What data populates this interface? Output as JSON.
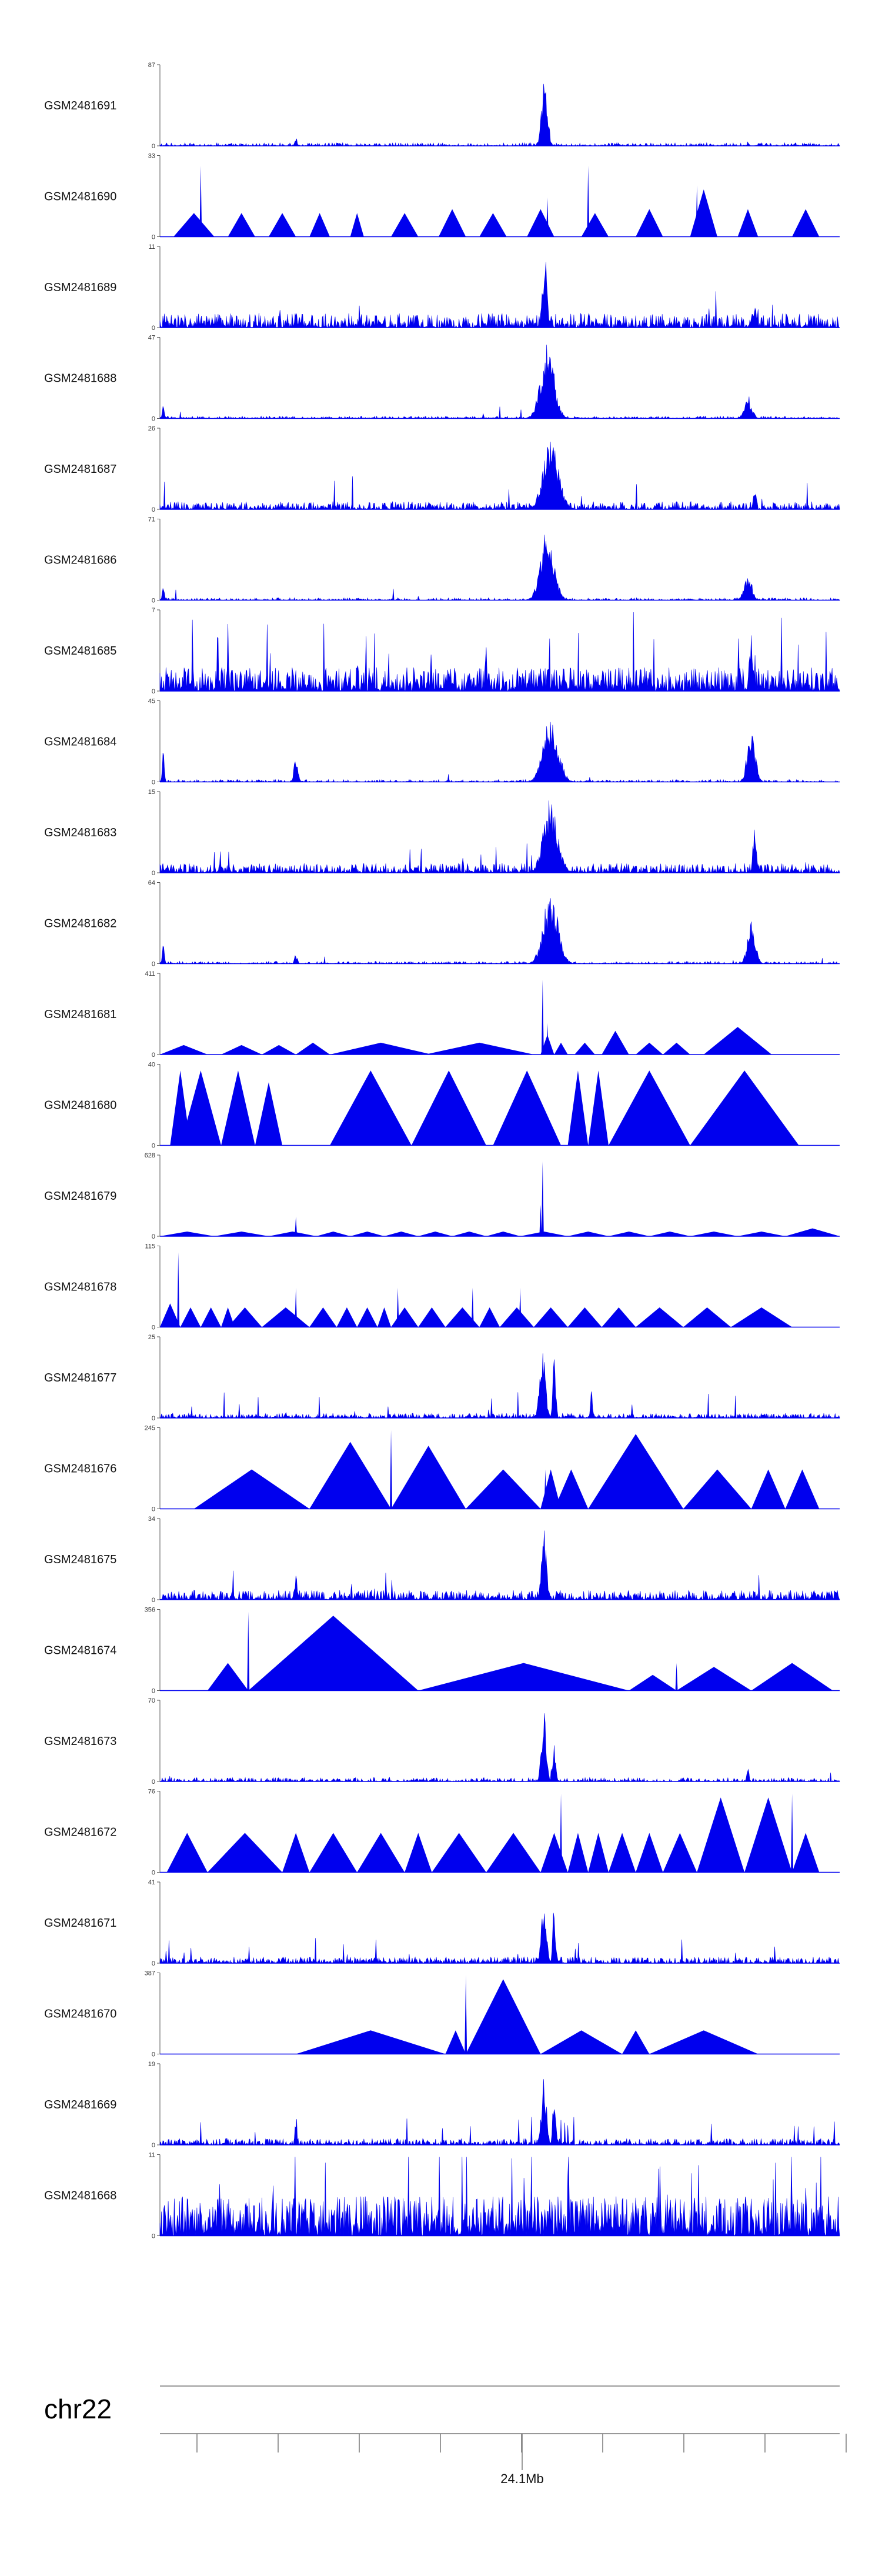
{
  "chart_data": {
    "type": "area",
    "title": "",
    "color": "#0000ee",
    "chromosome": "chr22",
    "position_label": "24.1Mb",
    "x_ticks_count": 9,
    "tracks": [
      {
        "name": "GSM2481691",
        "ymax": 87,
        "ymin": 0,
        "style": "sparse_peak",
        "baseline": 0.04,
        "peaks": [
          [
            0.2,
            0.12,
            0.22
          ],
          [
            0.566,
            0.9,
            0.6
          ],
          [
            0.865,
            0.08,
            0.1
          ]
        ]
      },
      {
        "name": "GSM2481690",
        "ymax": 33,
        "ymin": 0,
        "style": "triangles",
        "baseline": 0.0,
        "tri": [
          [
            0.02,
            0.08,
            0.3
          ],
          [
            0.1,
            0.14,
            0.3
          ],
          [
            0.16,
            0.2,
            0.3
          ],
          [
            0.22,
            0.25,
            0.3
          ],
          [
            0.28,
            0.3,
            0.3
          ],
          [
            0.34,
            0.38,
            0.3
          ],
          [
            0.41,
            0.45,
            0.35
          ],
          [
            0.47,
            0.51,
            0.3
          ],
          [
            0.54,
            0.58,
            0.35
          ],
          [
            0.62,
            0.66,
            0.3
          ],
          [
            0.7,
            0.74,
            0.35
          ],
          [
            0.78,
            0.82,
            0.6
          ],
          [
            0.85,
            0.88,
            0.35
          ],
          [
            0.93,
            0.97,
            0.35
          ]
        ],
        "spikes": [
          [
            0.06,
            0.9
          ],
          [
            0.63,
            0.9
          ],
          [
            0.79,
            0.65
          ],
          [
            0.57,
            0.5
          ]
        ]
      },
      {
        "name": "GSM2481689",
        "ymax": 11,
        "ymin": 0,
        "style": "noisy_peak",
        "baseline": 0.18,
        "peaks": [
          [
            0.566,
            0.95,
            0.5
          ],
          [
            0.875,
            0.4,
            0.3
          ],
          [
            0.2,
            0.3,
            0.2
          ]
        ]
      },
      {
        "name": "GSM2481688",
        "ymax": 47,
        "ymin": 0,
        "style": "sparse_peak",
        "baseline": 0.03,
        "peaks": [
          [
            0.57,
            0.95,
            1.4
          ],
          [
            0.865,
            0.3,
            0.8
          ],
          [
            0.005,
            0.2,
            0.2
          ]
        ]
      },
      {
        "name": "GSM2481687",
        "ymax": 26,
        "ymin": 0,
        "style": "noisy_peak",
        "baseline": 0.1,
        "peaks": [
          [
            0.575,
            0.9,
            1.6
          ],
          [
            0.875,
            0.3,
            0.3
          ]
        ]
      },
      {
        "name": "GSM2481686",
        "ymax": 71,
        "ymin": 0,
        "style": "sparse_peak",
        "baseline": 0.03,
        "peaks": [
          [
            0.57,
            0.95,
            1.4
          ],
          [
            0.865,
            0.35,
            0.8
          ],
          [
            0.005,
            0.25,
            0.2
          ]
        ]
      },
      {
        "name": "GSM2481685",
        "ymax": 7,
        "ymin": 0,
        "style": "dense_noise",
        "baseline": 0.3,
        "peaks": [
          [
            0.87,
            0.8,
            0.4
          ]
        ]
      },
      {
        "name": "GSM2481684",
        "ymax": 45,
        "ymin": 0,
        "style": "sparse_peak",
        "baseline": 0.03,
        "peaks": [
          [
            0.575,
            0.95,
            1.5
          ],
          [
            0.87,
            0.75,
            0.8
          ],
          [
            0.2,
            0.35,
            0.4
          ],
          [
            0.005,
            0.4,
            0.2
          ]
        ]
      },
      {
        "name": "GSM2481683",
        "ymax": 15,
        "ymin": 0,
        "style": "noisy_peak",
        "baseline": 0.12,
        "peaks": [
          [
            0.575,
            0.95,
            1.5
          ],
          [
            0.875,
            0.8,
            0.3
          ]
        ]
      },
      {
        "name": "GSM2481682",
        "ymax": 64,
        "ymin": 0,
        "style": "sparse_peak",
        "baseline": 0.03,
        "peaks": [
          [
            0.575,
            0.95,
            1.5
          ],
          [
            0.87,
            0.55,
            0.8
          ],
          [
            0.2,
            0.12,
            0.3
          ],
          [
            0.005,
            0.3,
            0.2
          ]
        ]
      },
      {
        "name": "GSM2481681",
        "ymax": 411,
        "ymin": 0,
        "style": "triangles",
        "baseline": 0.0,
        "tri": [
          [
            0.0,
            0.07,
            0.12
          ],
          [
            0.09,
            0.15,
            0.12
          ],
          [
            0.15,
            0.2,
            0.12
          ],
          [
            0.2,
            0.25,
            0.15
          ],
          [
            0.25,
            0.4,
            0.15
          ],
          [
            0.39,
            0.55,
            0.15
          ],
          [
            0.56,
            0.58,
            0.25
          ],
          [
            0.58,
            0.6,
            0.15
          ],
          [
            0.61,
            0.64,
            0.15
          ],
          [
            0.65,
            0.69,
            0.3
          ],
          [
            0.7,
            0.74,
            0.15
          ],
          [
            0.74,
            0.78,
            0.15
          ],
          [
            0.8,
            0.9,
            0.35
          ]
        ],
        "spikes": [
          [
            0.563,
            0.95
          ],
          [
            0.57,
            0.4
          ]
        ]
      },
      {
        "name": "GSM2481680",
        "ymax": 40,
        "ymin": 0,
        "style": "triangles",
        "baseline": 0.0,
        "tri": [
          [
            0.015,
            0.045,
            0.95
          ],
          [
            0.03,
            0.09,
            0.95
          ],
          [
            0.09,
            0.14,
            0.95
          ],
          [
            0.14,
            0.18,
            0.8
          ],
          [
            0.25,
            0.37,
            0.95
          ],
          [
            0.37,
            0.48,
            0.95
          ],
          [
            0.49,
            0.59,
            0.95
          ],
          [
            0.6,
            0.63,
            0.95
          ],
          [
            0.63,
            0.66,
            0.95
          ],
          [
            0.66,
            0.78,
            0.95
          ],
          [
            0.78,
            0.94,
            0.95
          ]
        ],
        "spikes": []
      },
      {
        "name": "GSM2481679",
        "ymax": 628,
        "ymin": 0,
        "style": "triangles",
        "baseline": 0.0,
        "tri": [
          [
            0.0,
            0.08,
            0.06
          ],
          [
            0.08,
            0.16,
            0.06
          ],
          [
            0.16,
            0.23,
            0.06
          ],
          [
            0.23,
            0.28,
            0.06
          ],
          [
            0.28,
            0.33,
            0.06
          ],
          [
            0.33,
            0.38,
            0.06
          ],
          [
            0.38,
            0.43,
            0.06
          ],
          [
            0.43,
            0.48,
            0.06
          ],
          [
            0.48,
            0.53,
            0.06
          ],
          [
            0.53,
            0.6,
            0.06
          ],
          [
            0.6,
            0.66,
            0.06
          ],
          [
            0.66,
            0.72,
            0.06
          ],
          [
            0.72,
            0.78,
            0.06
          ],
          [
            0.78,
            0.85,
            0.06
          ],
          [
            0.85,
            0.92,
            0.06
          ],
          [
            0.92,
            1.0,
            0.1
          ]
        ],
        "spikes": [
          [
            0.563,
            0.95
          ],
          [
            0.2,
            0.25
          ],
          [
            0.56,
            0.4
          ]
        ]
      },
      {
        "name": "GSM2481678",
        "ymax": 115,
        "ymin": 0,
        "style": "triangles",
        "baseline": 0.0,
        "tri": [
          [
            0.0,
            0.03,
            0.3
          ],
          [
            0.03,
            0.06,
            0.25
          ],
          [
            0.06,
            0.09,
            0.25
          ],
          [
            0.09,
            0.11,
            0.25
          ],
          [
            0.1,
            0.15,
            0.25
          ],
          [
            0.15,
            0.22,
            0.25
          ],
          [
            0.22,
            0.26,
            0.25
          ],
          [
            0.26,
            0.29,
            0.25
          ],
          [
            0.29,
            0.32,
            0.25
          ],
          [
            0.32,
            0.34,
            0.25
          ],
          [
            0.34,
            0.38,
            0.25
          ],
          [
            0.38,
            0.42,
            0.25
          ],
          [
            0.42,
            0.47,
            0.25
          ],
          [
            0.47,
            0.5,
            0.25
          ],
          [
            0.5,
            0.55,
            0.25
          ],
          [
            0.55,
            0.6,
            0.25
          ],
          [
            0.6,
            0.65,
            0.25
          ],
          [
            0.65,
            0.7,
            0.25
          ],
          [
            0.7,
            0.77,
            0.25
          ],
          [
            0.77,
            0.84,
            0.25
          ],
          [
            0.84,
            0.93,
            0.25
          ]
        ],
        "spikes": [
          [
            0.027,
            0.95
          ],
          [
            0.2,
            0.5
          ],
          [
            0.35,
            0.5
          ],
          [
            0.53,
            0.5
          ],
          [
            0.46,
            0.5
          ]
        ]
      },
      {
        "name": "GSM2481677",
        "ymax": 25,
        "ymin": 0,
        "style": "noisy_peak",
        "baseline": 0.06,
        "peaks": [
          [
            0.563,
            0.95,
            0.6
          ],
          [
            0.58,
            0.9,
            0.3
          ],
          [
            0.635,
            0.45,
            0.2
          ]
        ]
      },
      {
        "name": "GSM2481676",
        "ymax": 245,
        "ymin": 0,
        "style": "triangles",
        "baseline": 0.0,
        "tri": [
          [
            0.05,
            0.22,
            0.5
          ],
          [
            0.22,
            0.34,
            0.85
          ],
          [
            0.34,
            0.45,
            0.8
          ],
          [
            0.45,
            0.56,
            0.5
          ],
          [
            0.56,
            0.59,
            0.5
          ],
          [
            0.58,
            0.63,
            0.5
          ],
          [
            0.63,
            0.77,
            0.95
          ],
          [
            0.77,
            0.87,
            0.5
          ],
          [
            0.87,
            0.92,
            0.5
          ],
          [
            0.92,
            0.97,
            0.5
          ]
        ],
        "spikes": [
          [
            0.34,
            1.0
          ],
          [
            0.567,
            0.5
          ]
        ]
      },
      {
        "name": "GSM2481675",
        "ymax": 34,
        "ymin": 0,
        "style": "noisy_peak",
        "baseline": 0.12,
        "peaks": [
          [
            0.565,
            0.95,
            0.5
          ],
          [
            0.2,
            0.35,
            0.3
          ]
        ]
      },
      {
        "name": "GSM2481674",
        "ymax": 356,
        "ymin": 0,
        "style": "triangles",
        "baseline": 0.0,
        "tri": [
          [
            0.07,
            0.13,
            0.35
          ],
          [
            0.13,
            0.38,
            0.95
          ],
          [
            0.38,
            0.69,
            0.35
          ],
          [
            0.69,
            0.76,
            0.2
          ],
          [
            0.76,
            0.87,
            0.3
          ],
          [
            0.87,
            0.99,
            0.35
          ]
        ],
        "spikes": [
          [
            0.13,
            1.0
          ],
          [
            0.76,
            0.35
          ]
        ]
      },
      {
        "name": "GSM2481673",
        "ymax": 70,
        "ymin": 0,
        "style": "sparse_peak",
        "baseline": 0.05,
        "peaks": [
          [
            0.565,
            0.95,
            0.5
          ],
          [
            0.58,
            0.5,
            0.3
          ],
          [
            0.865,
            0.25,
            0.2
          ]
        ]
      },
      {
        "name": "GSM2481672",
        "ymax": 76,
        "ymin": 0,
        "style": "triangles",
        "baseline": 0.0,
        "tri": [
          [
            0.01,
            0.07,
            0.5
          ],
          [
            0.07,
            0.18,
            0.5
          ],
          [
            0.18,
            0.22,
            0.5
          ],
          [
            0.22,
            0.29,
            0.5
          ],
          [
            0.29,
            0.36,
            0.5
          ],
          [
            0.36,
            0.4,
            0.5
          ],
          [
            0.4,
            0.48,
            0.5
          ],
          [
            0.48,
            0.56,
            0.5
          ],
          [
            0.56,
            0.6,
            0.5
          ],
          [
            0.6,
            0.63,
            0.5
          ],
          [
            0.63,
            0.66,
            0.5
          ],
          [
            0.66,
            0.7,
            0.5
          ],
          [
            0.7,
            0.74,
            0.5
          ],
          [
            0.74,
            0.79,
            0.5
          ],
          [
            0.79,
            0.86,
            0.95
          ],
          [
            0.86,
            0.93,
            0.95
          ],
          [
            0.93,
            0.97,
            0.5
          ]
        ],
        "spikes": [
          [
            0.59,
            1.0
          ],
          [
            0.93,
            1.0
          ]
        ]
      },
      {
        "name": "GSM2481671",
        "ymax": 41,
        "ymin": 0,
        "style": "noisy_peak",
        "baseline": 0.08,
        "peaks": [
          [
            0.565,
            0.95,
            0.5
          ],
          [
            0.58,
            0.8,
            0.3
          ]
        ]
      },
      {
        "name": "GSM2481670",
        "ymax": 387,
        "ymin": 0,
        "style": "triangles",
        "baseline": 0.0,
        "tri": [
          [
            0.2,
            0.42,
            0.3
          ],
          [
            0.42,
            0.45,
            0.3
          ],
          [
            0.45,
            0.56,
            0.95
          ],
          [
            0.56,
            0.68,
            0.3
          ],
          [
            0.68,
            0.72,
            0.3
          ],
          [
            0.72,
            0.88,
            0.3
          ]
        ],
        "spikes": [
          [
            0.45,
            1.0
          ]
        ]
      },
      {
        "name": "GSM2481669",
        "ymax": 19,
        "ymin": 0,
        "style": "noisy_peak",
        "baseline": 0.08,
        "peaks": [
          [
            0.565,
            0.95,
            0.5
          ],
          [
            0.58,
            0.8,
            0.3
          ],
          [
            0.2,
            0.45,
            0.2
          ]
        ]
      },
      {
        "name": "GSM2481668",
        "ymax": 11,
        "ymin": 0,
        "style": "dense_noise",
        "baseline": 0.5,
        "peaks": []
      }
    ]
  }
}
